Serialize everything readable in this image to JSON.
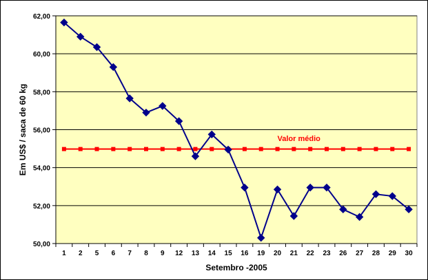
{
  "chart_data": {
    "type": "line",
    "title": "",
    "xlabel": "Setembro -2005",
    "ylabel": "Em US$ / saca de 60 kg",
    "ylim": [
      50,
      62
    ],
    "ytick_step": 2,
    "ytick_format": "comma2",
    "grid": true,
    "categories": [
      "1",
      "2",
      "5",
      "6",
      "7",
      "8",
      "9",
      "12",
      "13",
      "14",
      "15",
      "16",
      "19",
      "20",
      "21",
      "22",
      "23",
      "26",
      "27",
      "28",
      "29",
      "30"
    ],
    "series": [
      {
        "name": "",
        "color": "#00008B",
        "marker": "diamond",
        "values": [
          61.65,
          60.9,
          60.35,
          59.3,
          57.65,
          56.9,
          57.25,
          56.45,
          54.6,
          55.75,
          54.95,
          52.95,
          50.3,
          52.85,
          51.45,
          52.95,
          52.95,
          51.8,
          51.4,
          52.6,
          52.5,
          51.8
        ]
      },
      {
        "name": "Valor médio",
        "color": "#FF0000",
        "marker": "square",
        "values": [
          54.98,
          54.98,
          54.98,
          54.98,
          54.98,
          54.98,
          54.98,
          54.98,
          54.98,
          54.98,
          54.98,
          54.98,
          54.98,
          54.98,
          54.98,
          54.98,
          54.98,
          54.98,
          54.98,
          54.98,
          54.98,
          54.98
        ]
      }
    ],
    "annotations": [
      {
        "text": "Valor médio",
        "color": "#FF0000",
        "x_category": "20",
        "y": 55.4
      }
    ],
    "plot_background": "#FFFFC0",
    "grid_color": "#000000"
  }
}
